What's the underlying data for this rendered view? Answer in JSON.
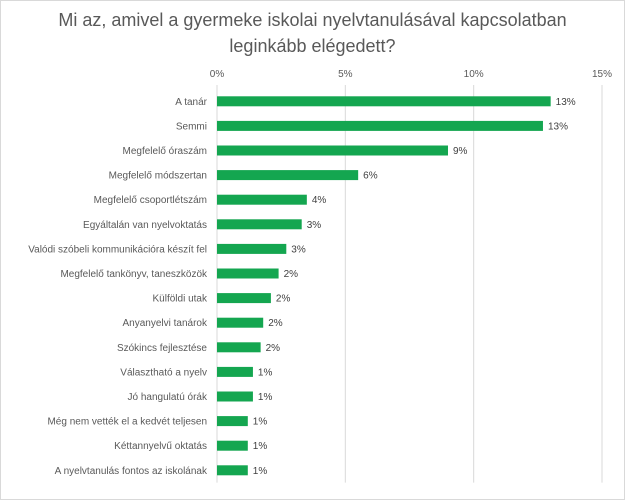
{
  "chart_data": {
    "type": "bar",
    "orientation": "horizontal",
    "title": "Mi az, amivel a gyermeke iskolai nyelvtanulásával kapcsolatban\nleginkább elégedett?",
    "categories": [
      "A tanár",
      "Semmi",
      "Megfelelő óraszám",
      "Megfelelő módszertan",
      "Megfelelő csoportlétszám",
      "Egyáltalán van nyelvoktatás",
      "Valódi szóbeli kommunikációra készít fel",
      "Megfelelő tankönyv, taneszközök",
      "Külföldi utak",
      "Anyanyelvi tanárok",
      "Szókincs fejlesztése",
      "Választható a nyelv",
      "Jó hangulatú órák",
      "Még nem vették el a kedvét teljesen",
      "Kéttannyelvű oktatás",
      "A nyelvtanulás fontos az iskolának"
    ],
    "values": [
      13.0,
      12.7,
      9.0,
      5.5,
      3.5,
      3.3,
      2.7,
      2.4,
      2.1,
      1.8,
      1.7,
      1.4,
      1.4,
      1.2,
      1.2,
      1.2
    ],
    "data_labels": [
      "13%",
      "13%",
      "9%",
      "6%",
      "4%",
      "3%",
      "3%",
      "2%",
      "2%",
      "2%",
      "2%",
      "1%",
      "1%",
      "1%",
      "1%",
      "1%"
    ],
    "x_ticks": [
      0,
      5,
      10,
      15
    ],
    "x_tick_labels": [
      "0%",
      "5%",
      "10%",
      "15%"
    ],
    "xlim": [
      0,
      15
    ],
    "xlabel": "",
    "ylabel": "",
    "grid": true,
    "axis_position": "top",
    "bar_color": "#14a650",
    "grid_color": "#d9d9d9"
  }
}
